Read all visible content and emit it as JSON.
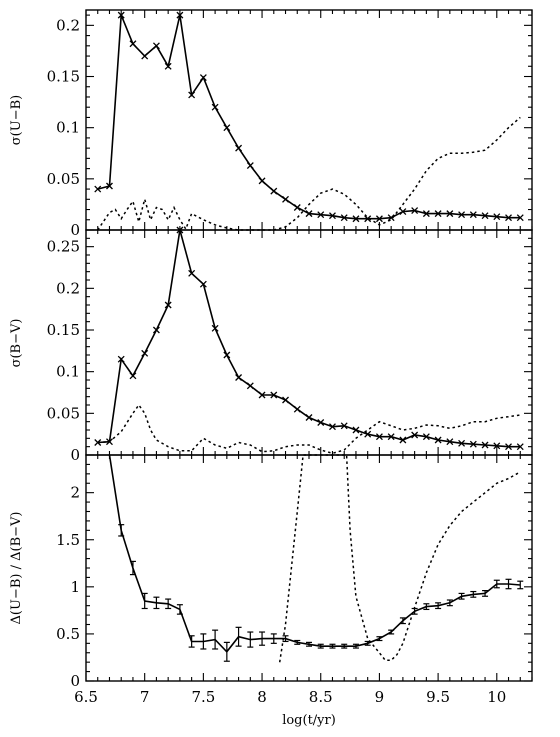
{
  "chart_data": {
    "type": "line",
    "xlabel": "log(t/yr)",
    "xlim": [
      6.5,
      10.3
    ],
    "xticks": [
      "6.5",
      "7",
      "7.5",
      "8",
      "8.5",
      "9",
      "9.5",
      "10"
    ],
    "xtick_values": [
      6.5,
      7,
      7.5,
      8,
      8.5,
      9,
      9.5,
      10
    ],
    "panels": [
      {
        "id": "top",
        "ylabel": "σ(U−B)",
        "ylim": [
          0,
          0.215
        ],
        "yticks": [
          "0",
          "0.05",
          "0.1",
          "0.15",
          "0.2"
        ],
        "ytick_values": [
          0,
          0.05,
          0.1,
          0.15,
          0.2
        ],
        "series": [
          {
            "style": "solid-cross",
            "x": [
              6.6,
              6.7,
              6.8,
              6.9,
              7.0,
              7.1,
              7.2,
              7.3,
              7.4,
              7.5,
              7.6,
              7.7,
              7.8,
              7.9,
              8.0,
              8.1,
              8.2,
              8.3,
              8.4,
              8.5,
              8.6,
              8.7,
              8.8,
              8.9,
              9.0,
              9.1,
              9.2,
              9.3,
              9.4,
              9.5,
              9.6,
              9.7,
              9.8,
              9.9,
              10.0,
              10.1,
              10.2
            ],
            "y": [
              0.04,
              0.043,
              0.21,
              0.182,
              0.17,
              0.18,
              0.16,
              0.21,
              0.132,
              0.149,
              0.12,
              0.1,
              0.08,
              0.063,
              0.048,
              0.038,
              0.03,
              0.022,
              0.016,
              0.015,
              0.014,
              0.012,
              0.011,
              0.011,
              0.011,
              0.012,
              0.018,
              0.019,
              0.016,
              0.016,
              0.016,
              0.015,
              0.015,
              0.014,
              0.013,
              0.012,
              0.012
            ]
          },
          {
            "style": "dotted",
            "x": [
              6.6,
              6.7,
              6.75,
              6.8,
              6.85,
              6.9,
              6.95,
              7.0,
              7.05,
              7.1,
              7.15,
              7.2,
              7.25,
              7.3,
              7.35,
              7.4,
              7.5,
              7.6,
              7.7,
              7.8,
              7.9,
              8.0,
              8.1,
              8.2,
              8.3,
              8.4,
              8.5,
              8.6,
              8.7,
              8.75,
              8.8,
              8.9,
              9.0,
              9.1,
              9.2,
              9.3,
              9.4,
              9.5,
              9.6,
              9.7,
              9.8,
              9.9,
              10.0,
              10.1,
              10.2
            ],
            "y": [
              0.0,
              0.017,
              0.02,
              0.011,
              0.02,
              0.028,
              0.008,
              0.03,
              0.01,
              0.022,
              0.02,
              0.01,
              0.022,
              0.01,
              0.001,
              0.016,
              0.01,
              0.005,
              0.002,
              0.0,
              0.0,
              0.0,
              0.0,
              0.003,
              0.012,
              0.025,
              0.036,
              0.04,
              0.035,
              0.03,
              0.025,
              0.012,
              0.005,
              0.01,
              0.025,
              0.04,
              0.058,
              0.07,
              0.075,
              0.075,
              0.076,
              0.078,
              0.088,
              0.1,
              0.11
            ]
          }
        ]
      },
      {
        "id": "middle",
        "ylabel": "σ(B−V)",
        "ylim": [
          0,
          0.27
        ],
        "yticks": [
          "0",
          "0.05",
          "0.1",
          "0.15",
          "0.2",
          "0.25"
        ],
        "ytick_values": [
          0,
          0.05,
          0.1,
          0.15,
          0.2,
          0.25
        ],
        "series": [
          {
            "style": "solid-cross",
            "x": [
              6.6,
              6.7,
              6.8,
              6.9,
              7.0,
              7.1,
              7.2,
              7.3,
              7.4,
              7.5,
              7.6,
              7.7,
              7.8,
              7.9,
              8.0,
              8.1,
              8.2,
              8.3,
              8.4,
              8.5,
              8.6,
              8.7,
              8.8,
              8.9,
              9.0,
              9.1,
              9.2,
              9.3,
              9.4,
              9.5,
              9.6,
              9.7,
              9.8,
              9.9,
              10.0,
              10.1,
              10.2
            ],
            "y": [
              0.015,
              0.016,
              0.115,
              0.095,
              0.122,
              0.15,
              0.18,
              0.27,
              0.218,
              0.205,
              0.152,
              0.12,
              0.093,
              0.083,
              0.072,
              0.072,
              0.066,
              0.055,
              0.045,
              0.039,
              0.034,
              0.035,
              0.03,
              0.025,
              0.022,
              0.022,
              0.018,
              0.024,
              0.022,
              0.018,
              0.016,
              0.014,
              0.013,
              0.012,
              0.011,
              0.01,
              0.01
            ]
          },
          {
            "style": "dotted",
            "x": [
              6.6,
              6.7,
              6.8,
              6.9,
              6.95,
              7.0,
              7.05,
              7.1,
              7.2,
              7.3,
              7.4,
              7.5,
              7.6,
              7.7,
              7.8,
              7.9,
              8.0,
              8.1,
              8.2,
              8.3,
              8.4,
              8.5,
              8.6,
              8.7,
              8.8,
              8.9,
              9.0,
              9.1,
              9.2,
              9.3,
              9.4,
              9.5,
              9.6,
              9.7,
              9.8,
              9.9,
              10.0,
              10.1,
              10.2
            ],
            "y": [
              0.015,
              0.016,
              0.028,
              0.05,
              0.06,
              0.05,
              0.03,
              0.018,
              0.01,
              0.005,
              0.005,
              0.02,
              0.012,
              0.008,
              0.015,
              0.012,
              0.004,
              0.005,
              0.01,
              0.012,
              0.012,
              0.006,
              0.002,
              0.006,
              0.02,
              0.03,
              0.04,
              0.035,
              0.03,
              0.032,
              0.036,
              0.035,
              0.032,
              0.035,
              0.04,
              0.04,
              0.044,
              0.046,
              0.048
            ]
          }
        ]
      },
      {
        "id": "bottom",
        "ylabel": "Δ(U−B) / Δ(B−V)",
        "ylim": [
          0,
          2.4
        ],
        "yticks": [
          "0",
          "0.5",
          "1",
          "1.5",
          "2"
        ],
        "ytick_values": [
          0,
          0.5,
          1,
          1.5,
          2
        ],
        "series": [
          {
            "style": "solid-errorbar",
            "x": [
              6.7,
              6.8,
              6.9,
              7.0,
              7.1,
              7.2,
              7.3,
              7.4,
              7.5,
              7.6,
              7.7,
              7.8,
              7.9,
              8.0,
              8.1,
              8.2,
              8.3,
              8.4,
              8.5,
              8.6,
              8.7,
              8.8,
              8.9,
              9.0,
              9.1,
              9.2,
              9.3,
              9.4,
              9.5,
              9.6,
              9.7,
              9.8,
              9.9,
              10.0,
              10.1,
              10.2
            ],
            "y": [
              2.4,
              1.6,
              1.2,
              0.85,
              0.83,
              0.82,
              0.76,
              0.42,
              0.42,
              0.44,
              0.31,
              0.47,
              0.44,
              0.45,
              0.45,
              0.45,
              0.41,
              0.39,
              0.37,
              0.37,
              0.37,
              0.37,
              0.4,
              0.45,
              0.52,
              0.64,
              0.74,
              0.79,
              0.8,
              0.83,
              0.9,
              0.92,
              0.93,
              1.03,
              1.03,
              1.02
            ],
            "err": [
              0.0,
              0.06,
              0.07,
              0.08,
              0.06,
              0.05,
              0.05,
              0.06,
              0.08,
              0.1,
              0.1,
              0.1,
              0.08,
              0.07,
              0.05,
              0.03,
              0.02,
              0.02,
              0.02,
              0.02,
              0.02,
              0.02,
              0.02,
              0.02,
              0.02,
              0.03,
              0.03,
              0.03,
              0.03,
              0.03,
              0.03,
              0.03,
              0.03,
              0.04,
              0.05,
              0.04
            ]
          },
          {
            "style": "dotted",
            "x": [
              8.15,
              8.2,
              8.3,
              8.35,
              8.72,
              8.75,
              8.8,
              8.9,
              9.0,
              9.05,
              9.1,
              9.15,
              9.2,
              9.3,
              9.4,
              9.5,
              9.6,
              9.7,
              9.8,
              9.9,
              10.0,
              10.1,
              10.2
            ],
            "y": [
              0.2,
              0.6,
              1.8,
              2.4,
              2.4,
              1.6,
              0.9,
              0.45,
              0.3,
              0.22,
              0.22,
              0.28,
              0.4,
              0.78,
              1.15,
              1.45,
              1.65,
              1.8,
              1.9,
              2.0,
              2.1,
              2.15,
              2.22
            ]
          }
        ]
      }
    ]
  }
}
